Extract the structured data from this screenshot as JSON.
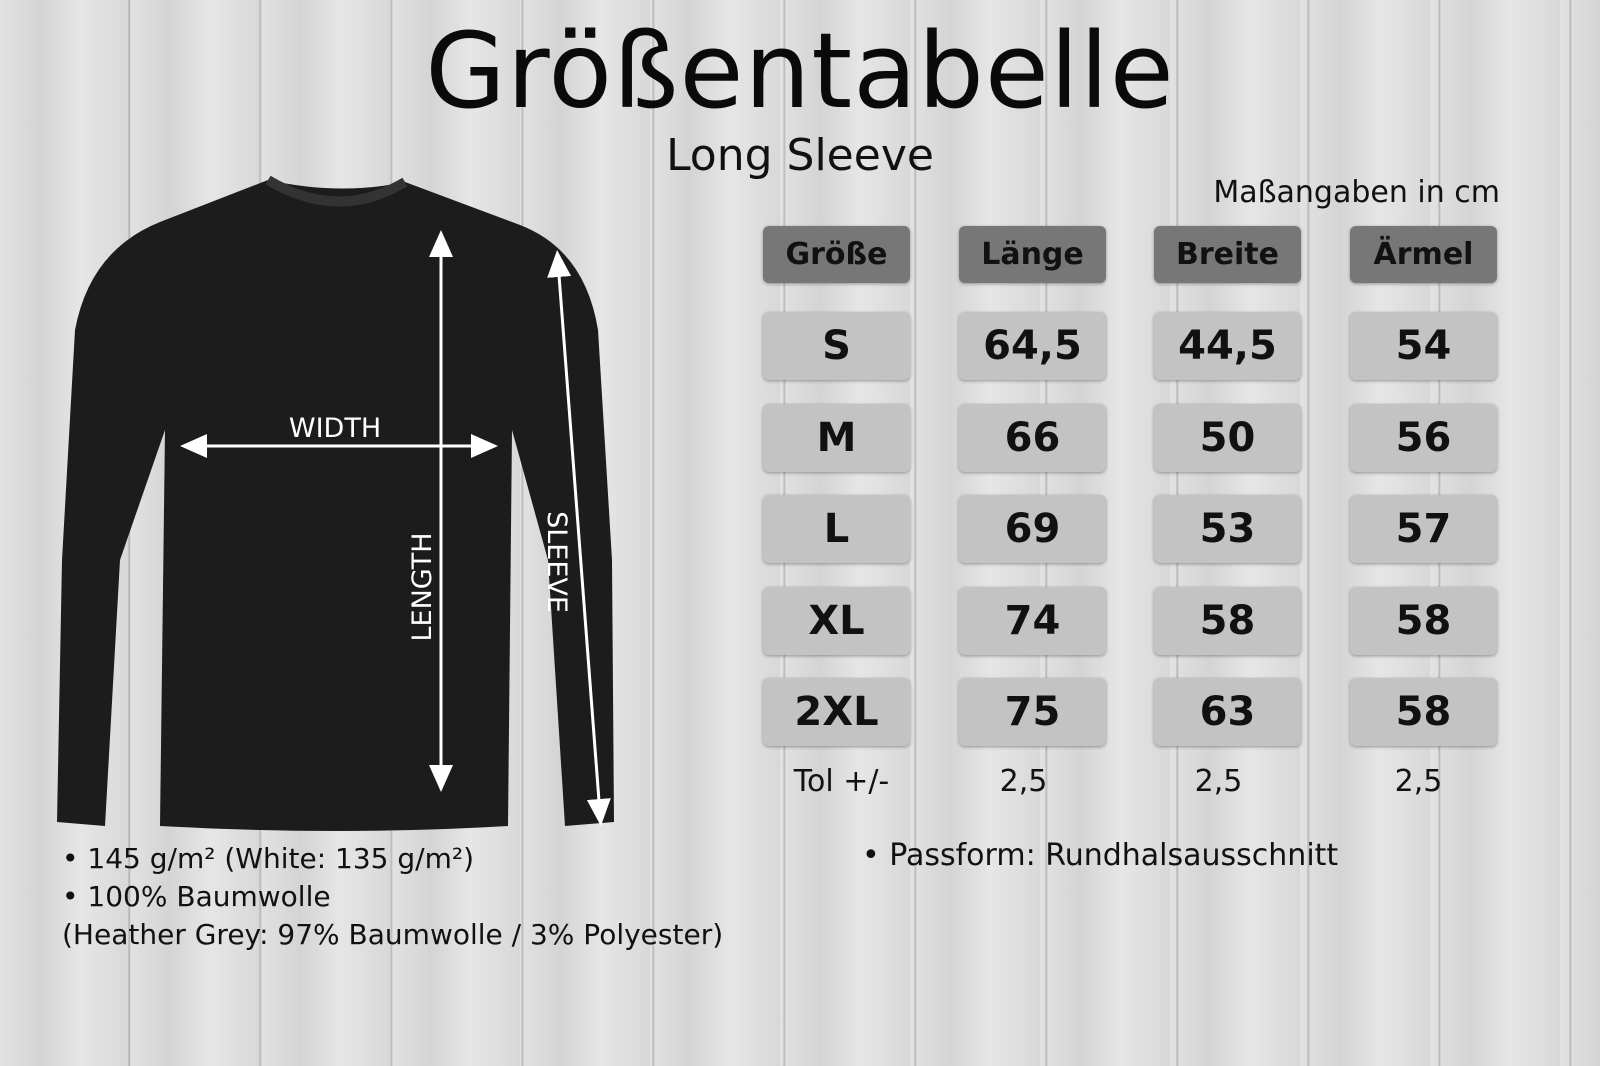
{
  "title": "Größentabelle",
  "subtitle": "Long Sleeve",
  "unit_note": "Maßangaben in cm",
  "garment_labels": {
    "width": "WIDTH",
    "length": "LENGTH",
    "sleeve": "SLEEVE"
  },
  "table": {
    "headers": [
      "Größe",
      "Länge",
      "Breite",
      "Ärmel"
    ],
    "rows": [
      [
        "S",
        "64,5",
        "44,5",
        "54"
      ],
      [
        "M",
        "66",
        "50",
        "56"
      ],
      [
        "L",
        "69",
        "53",
        "57"
      ],
      [
        "XL",
        "74",
        "58",
        "58"
      ],
      [
        "2XL",
        "75",
        "63",
        "58"
      ]
    ],
    "tolerance": [
      "Tol +/-",
      "2,5",
      "2,5",
      "2,5"
    ]
  },
  "notes_left": [
    "• 145 g/m² (White: 135 g/m²)",
    "• 100% Baumwolle",
    "(Heather Grey: 97% Baumwolle / 3% Polyester)"
  ],
  "note_right": "•  Passform: Rundhalsausschnitt",
  "colors": {
    "header_cell": "#777777",
    "body_cell": "#c3c3c3",
    "shirt": "#1c1c1c"
  }
}
